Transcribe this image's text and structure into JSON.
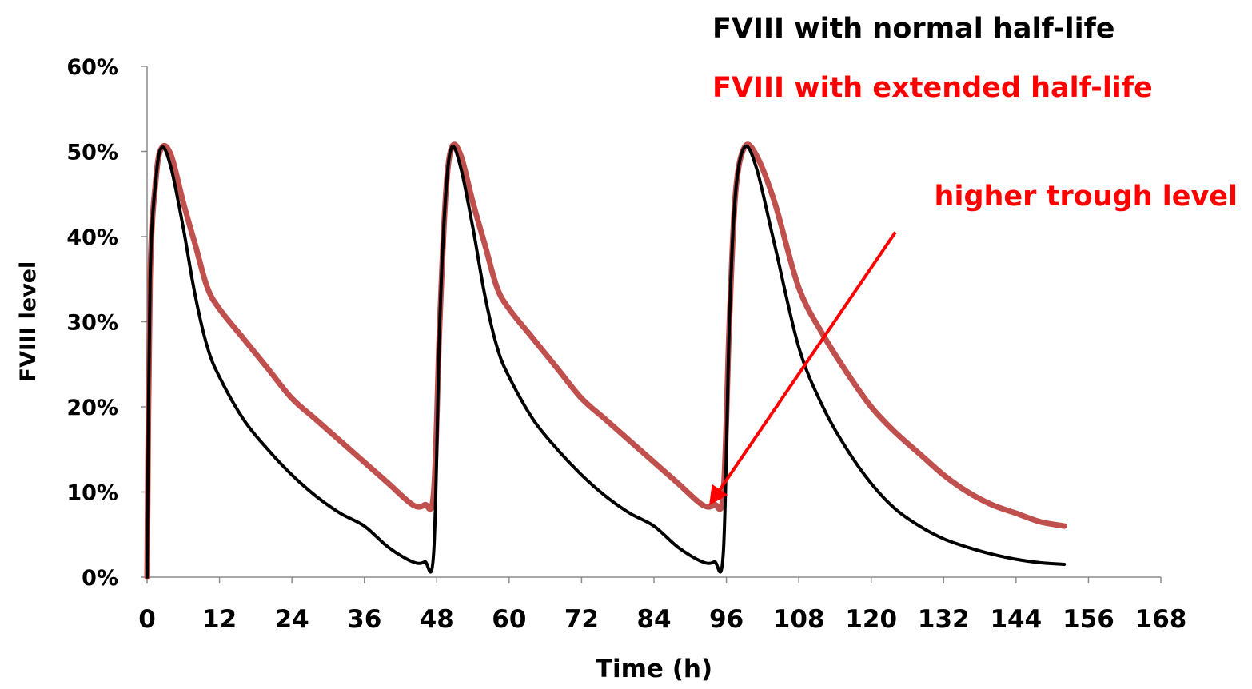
{
  "chart_data": {
    "type": "line",
    "title": "",
    "xlabel": "Time (h)",
    "ylabel": "FVIII level",
    "xlim": [
      0,
      168
    ],
    "ylim": [
      0,
      0.6
    ],
    "x_ticks": [
      0,
      12,
      24,
      36,
      48,
      60,
      72,
      84,
      96,
      108,
      120,
      132,
      144,
      156,
      168
    ],
    "y_ticks": [
      0,
      0.1,
      0.2,
      0.3,
      0.4,
      0.5,
      0.6
    ],
    "y_tick_labels": [
      "0%",
      "10%",
      "20%",
      "30%",
      "40%",
      "50%",
      "60%"
    ],
    "grid": false,
    "legend_position": "top-right",
    "series": [
      {
        "name": "FVIII with normal half-life",
        "color": "#000000",
        "points": [
          [
            0,
            0
          ],
          [
            0.5,
            0.35
          ],
          [
            1.5,
            0.47
          ],
          [
            2.5,
            0.505
          ],
          [
            4,
            0.48
          ],
          [
            6,
            0.41
          ],
          [
            8,
            0.33
          ],
          [
            10,
            0.27
          ],
          [
            12,
            0.235
          ],
          [
            16,
            0.185
          ],
          [
            20,
            0.15
          ],
          [
            24,
            0.12
          ],
          [
            28,
            0.095
          ],
          [
            32,
            0.075
          ],
          [
            36,
            0.06
          ],
          [
            40,
            0.035
          ],
          [
            44,
            0.018
          ],
          [
            46,
            0.018
          ],
          [
            47.5,
            0.03
          ],
          [
            48.5,
            0.3
          ],
          [
            49.5,
            0.45
          ],
          [
            50.5,
            0.505
          ],
          [
            52,
            0.48
          ],
          [
            54,
            0.41
          ],
          [
            56,
            0.33
          ],
          [
            58,
            0.27
          ],
          [
            60,
            0.235
          ],
          [
            64,
            0.185
          ],
          [
            68,
            0.15
          ],
          [
            72,
            0.12
          ],
          [
            76,
            0.095
          ],
          [
            80,
            0.075
          ],
          [
            84,
            0.06
          ],
          [
            88,
            0.035
          ],
          [
            92,
            0.018
          ],
          [
            94,
            0.018
          ],
          [
            95.5,
            0.03
          ],
          [
            96.5,
            0.3
          ],
          [
            97.5,
            0.45
          ],
          [
            99,
            0.505
          ],
          [
            101,
            0.48
          ],
          [
            104,
            0.39
          ],
          [
            108,
            0.27
          ],
          [
            112,
            0.2
          ],
          [
            116,
            0.15
          ],
          [
            120,
            0.11
          ],
          [
            124,
            0.08
          ],
          [
            128,
            0.06
          ],
          [
            132,
            0.045
          ],
          [
            136,
            0.035
          ],
          [
            140,
            0.027
          ],
          [
            144,
            0.021
          ],
          [
            148,
            0.017
          ],
          [
            152,
            0.015
          ]
        ]
      },
      {
        "name": "FVIII with extended half-life",
        "color": "#c0504d",
        "points": [
          [
            0,
            0
          ],
          [
            0.5,
            0.35
          ],
          [
            1.5,
            0.47
          ],
          [
            2.5,
            0.505
          ],
          [
            4,
            0.495
          ],
          [
            6,
            0.44
          ],
          [
            8,
            0.39
          ],
          [
            10,
            0.34
          ],
          [
            12,
            0.315
          ],
          [
            16,
            0.28
          ],
          [
            20,
            0.245
          ],
          [
            24,
            0.21
          ],
          [
            28,
            0.185
          ],
          [
            32,
            0.16
          ],
          [
            36,
            0.135
          ],
          [
            40,
            0.11
          ],
          [
            44,
            0.085
          ],
          [
            46,
            0.085
          ],
          [
            47.5,
            0.1
          ],
          [
            48.5,
            0.3
          ],
          [
            49.5,
            0.45
          ],
          [
            50.5,
            0.505
          ],
          [
            52,
            0.495
          ],
          [
            54,
            0.44
          ],
          [
            56,
            0.39
          ],
          [
            58,
            0.34
          ],
          [
            60,
            0.315
          ],
          [
            64,
            0.28
          ],
          [
            68,
            0.245
          ],
          [
            72,
            0.21
          ],
          [
            76,
            0.185
          ],
          [
            80,
            0.16
          ],
          [
            84,
            0.135
          ],
          [
            88,
            0.11
          ],
          [
            92,
            0.085
          ],
          [
            94,
            0.085
          ],
          [
            95.5,
            0.1
          ],
          [
            96.5,
            0.3
          ],
          [
            97.5,
            0.45
          ],
          [
            99,
            0.505
          ],
          [
            101,
            0.495
          ],
          [
            104,
            0.44
          ],
          [
            108,
            0.34
          ],
          [
            112,
            0.285
          ],
          [
            116,
            0.24
          ],
          [
            120,
            0.2
          ],
          [
            124,
            0.17
          ],
          [
            128,
            0.145
          ],
          [
            132,
            0.12
          ],
          [
            136,
            0.1
          ],
          [
            140,
            0.085
          ],
          [
            144,
            0.075
          ],
          [
            148,
            0.065
          ],
          [
            152,
            0.06
          ]
        ]
      }
    ],
    "annotations": [
      {
        "text": "higher trough level",
        "color": "#ff0000",
        "arrow_from": [
          124,
          0.405
        ],
        "arrow_to": [
          93.5,
          0.088
        ]
      }
    ]
  }
}
